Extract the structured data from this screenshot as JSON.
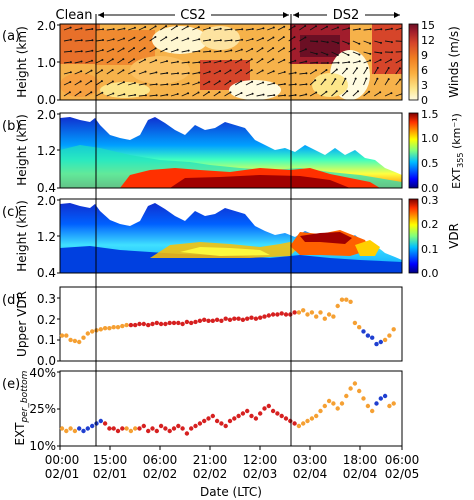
{
  "figure": {
    "period_labels": [
      "Clean",
      "CS2",
      "DS2"
    ],
    "x_tick_times": [
      "00:00",
      "15:00",
      "06:00",
      "21:00",
      "12:00",
      "03:00",
      "18:00",
      "06:00"
    ],
    "x_tick_dates": [
      "02/01",
      "02/01",
      "02/02",
      "02/02",
      "02/03",
      "02/04",
      "02/04",
      "02/05"
    ],
    "x_axis_label": "Date (LTC)"
  },
  "chart_data": [
    {
      "panel": "(a)",
      "type": "heatmap",
      "ylabel": "Height (km)",
      "yticks": [
        "0.0",
        "1.0",
        "2.0"
      ],
      "ylim": [
        0,
        2.0
      ],
      "colorbar_label": "Winds (m/s)",
      "colorbar_ticks": [
        "0",
        "3",
        "6",
        "9",
        "12",
        "15"
      ],
      "colorbar_range": [
        0,
        15
      ],
      "colors": [
        "#fffbe0",
        "#fde68a",
        "#fbb040",
        "#f07e22",
        "#d6452a",
        "#a11d2c",
        "#6b0f24"
      ]
    },
    {
      "panel": "(b)",
      "type": "heatmap",
      "ylabel": "Height (km)",
      "yticks": [
        "0.4",
        "1.2",
        "2.0"
      ],
      "ylim": [
        0.4,
        2.0
      ],
      "colorbar_label": "EXT355 (km⁻¹)",
      "colorbar_ticks": [
        "0.0",
        "0.5",
        "1.0",
        "1.5"
      ],
      "colorbar_range": [
        0,
        1.5
      ],
      "colors": [
        "#00007f",
        "#0000ff",
        "#007fff",
        "#00ffff",
        "#7fff7f",
        "#ffff00",
        "#ff7f00",
        "#ff0000",
        "#7f0000"
      ]
    },
    {
      "panel": "(c)",
      "type": "heatmap",
      "ylabel": "Height (km)",
      "yticks": [
        "0.4",
        "1.2",
        "2.0"
      ],
      "ylim": [
        0.4,
        2.0
      ],
      "colorbar_label": "VDR",
      "colorbar_ticks": [
        "0.0",
        "0.1",
        "0.2",
        "0.3"
      ],
      "colorbar_range": [
        0,
        0.3
      ],
      "colors": [
        "#00007f",
        "#0000ff",
        "#007fff",
        "#00ffff",
        "#7fff7f",
        "#ffff00",
        "#ff7f00",
        "#ff0000",
        "#7f0000"
      ]
    },
    {
      "panel": "(d)",
      "type": "scatter",
      "ylabel": "Upper VDR",
      "yticks": [
        "0.0",
        "0.1",
        "0.2",
        "0.3"
      ],
      "ylim": [
        0,
        0.35
      ],
      "x_unit": "hours since 02/01 00:00",
      "xlim": [
        0,
        102
      ],
      "category_colors": {
        "blue": "#1f3fd0",
        "orange": "#f5a033",
        "red": "#d62020"
      },
      "series": [
        {
          "x": [
            0.0,
            1.3,
            2.6,
            3.9,
            5.2,
            6.5
          ],
          "y": [
            0.12,
            0.12,
            0.1,
            0.095,
            0.09,
            0.11
          ],
          "color": "orange"
        },
        {
          "x": [
            7.8,
            9.1,
            10.4,
            11.7,
            13.0,
            14.3,
            15.6,
            16.9,
            18.2,
            19.5
          ],
          "y": [
            0.13,
            0.14,
            0.145,
            0.15,
            0.155,
            0.155,
            0.16,
            0.16,
            0.165,
            0.17
          ],
          "color": "orange"
        },
        {
          "x": [
            20.8,
            22.1,
            23.4,
            24.7,
            26.0,
            27.3,
            28.6,
            29.9,
            31.2,
            32.5,
            33.8,
            35.1,
            36.4,
            37.7,
            39.0,
            40.3,
            41.6,
            42.9,
            44.2,
            45.5,
            46.8,
            48.1,
            49.4,
            50.7,
            52.0,
            53.3,
            54.6,
            55.9,
            57.2,
            58.5,
            59.8,
            61.1,
            62.4,
            63.7,
            65.0,
            66.3,
            67.6,
            68.9,
            70.2
          ],
          "y": [
            0.17,
            0.17,
            0.175,
            0.175,
            0.17,
            0.175,
            0.18,
            0.175,
            0.175,
            0.18,
            0.18,
            0.18,
            0.175,
            0.185,
            0.18,
            0.185,
            0.19,
            0.195,
            0.19,
            0.19,
            0.195,
            0.19,
            0.2,
            0.195,
            0.2,
            0.2,
            0.195,
            0.2,
            0.205,
            0.2,
            0.205,
            0.21,
            0.215,
            0.22,
            0.22,
            0.225,
            0.22,
            0.22,
            0.23
          ],
          "color": "red"
        },
        {
          "x": [
            71.5,
            72.8,
            74.1,
            75.4,
            76.7,
            78.0,
            79.3,
            80.6,
            81.9,
            83.2,
            84.5,
            85.8,
            87.1,
            88.4,
            89.7
          ],
          "y": [
            0.23,
            0.24,
            0.22,
            0.23,
            0.21,
            0.23,
            0.2,
            0.22,
            0.21,
            0.26,
            0.29,
            0.29,
            0.28,
            0.18,
            0.16
          ],
          "color": "orange"
        },
        {
          "x": [
            91.0,
            92.3,
            93.6,
            94.9,
            96.2
          ],
          "y": [
            0.14,
            0.12,
            0.11,
            0.08,
            0.09
          ],
          "color": "blue"
        },
        {
          "x": [
            97.5,
            98.8,
            100.1
          ],
          "y": [
            0.1,
            0.12,
            0.15
          ],
          "color": "orange"
        }
      ]
    },
    {
      "panel": "(e)",
      "type": "scatter",
      "ylabel": "EXTper_bottom",
      "yticks": [
        "10%",
        "25%",
        "40%"
      ],
      "ylim": [
        10,
        40
      ],
      "x_unit": "hours since 02/01 00:00",
      "xlim": [
        0,
        102
      ],
      "category_colors": {
        "blue": "#1f3fd0",
        "orange": "#f5a033",
        "red": "#d62020"
      },
      "series": [
        {
          "x": [
            0.0,
            1.3,
            2.6,
            3.9
          ],
          "y": [
            17,
            16,
            17,
            16
          ],
          "color": "orange"
        },
        {
          "x": [
            5.2,
            6.5,
            7.8,
            9.1,
            10.4,
            11.7
          ],
          "y": [
            17,
            16,
            17,
            18,
            19,
            20
          ],
          "color": "blue"
        },
        {
          "x": [
            13.0,
            14.3,
            15.6,
            16.9,
            18.2
          ],
          "y": [
            19,
            17,
            17,
            16,
            17
          ],
          "color": "red"
        },
        {
          "x": [
            19.5,
            20.8,
            22.1
          ],
          "y": [
            17,
            16,
            17
          ],
          "color": "orange"
        },
        {
          "x": [
            23.4,
            24.7,
            26.0,
            27.3,
            28.6,
            29.9,
            31.2,
            32.5,
            33.8,
            35.1,
            36.4,
            37.7,
            39.0,
            40.3,
            41.6,
            42.9,
            44.2,
            45.5,
            46.8,
            48.1,
            49.4,
            50.7,
            52.0,
            53.3,
            54.6,
            55.9,
            57.2,
            58.5,
            59.8,
            61.1,
            62.4,
            63.7,
            65.0,
            66.3,
            67.6,
            68.9,
            70.2
          ],
          "y": [
            17,
            18,
            16,
            17,
            16,
            18,
            17,
            16,
            17,
            18,
            17,
            15,
            17,
            18,
            19,
            20,
            21,
            22,
            20,
            19,
            18,
            20,
            21,
            22,
            23,
            24,
            22,
            21,
            23,
            25,
            26,
            24,
            23,
            22,
            21,
            20,
            19
          ],
          "color": "red"
        },
        {
          "x": [
            71.5,
            72.8,
            74.1,
            75.4,
            76.7,
            78.0,
            79.3,
            80.6,
            81.9,
            83.2,
            84.5,
            85.8,
            87.1,
            88.4,
            89.7,
            91.0,
            92.3,
            93.6
          ],
          "y": [
            18,
            19,
            20,
            21,
            22,
            24,
            26,
            28,
            27,
            25,
            27,
            30,
            33,
            35,
            32,
            29,
            26,
            24
          ],
          "color": "orange"
        },
        {
          "x": [
            94.9,
            96.2,
            97.5
          ],
          "y": [
            27,
            29,
            30
          ],
          "color": "blue"
        },
        {
          "x": [
            98.8,
            100.1
          ],
          "y": [
            26,
            27
          ],
          "color": "orange"
        }
      ]
    }
  ]
}
